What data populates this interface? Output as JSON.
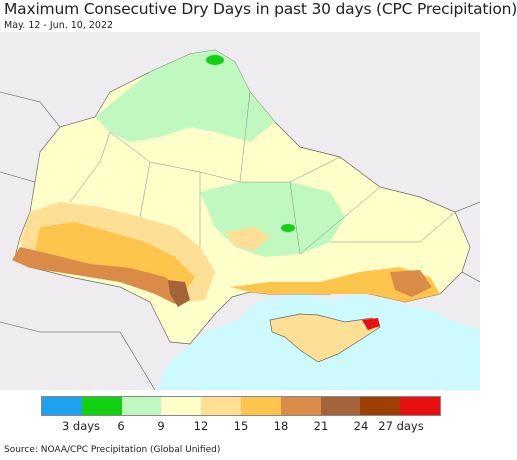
{
  "title": "Maximum Consecutive Dry Days in past 30 days (CPC Precipitation)",
  "subtitle": "May. 12 - Jun. 10, 2022",
  "map": {
    "background_land_outside": "#efecef",
    "sea_color": "#cdfaff",
    "highlight_regions": [
      "Ukraine"
    ]
  },
  "legend": {
    "colors": [
      "#1ea2f0",
      "#12d012",
      "#c0f9c0",
      "#ffffc9",
      "#fedf96",
      "#fdc54c",
      "#d98b47",
      "#a4643a",
      "#9c3f00",
      "#e81010"
    ],
    "tick_labels": [
      "3 days",
      "6",
      "9",
      "12",
      "15",
      "18",
      "21",
      "24",
      "27 days"
    ]
  },
  "source": "Source: NOAA/CPC Precipitation (Global Unified)"
}
